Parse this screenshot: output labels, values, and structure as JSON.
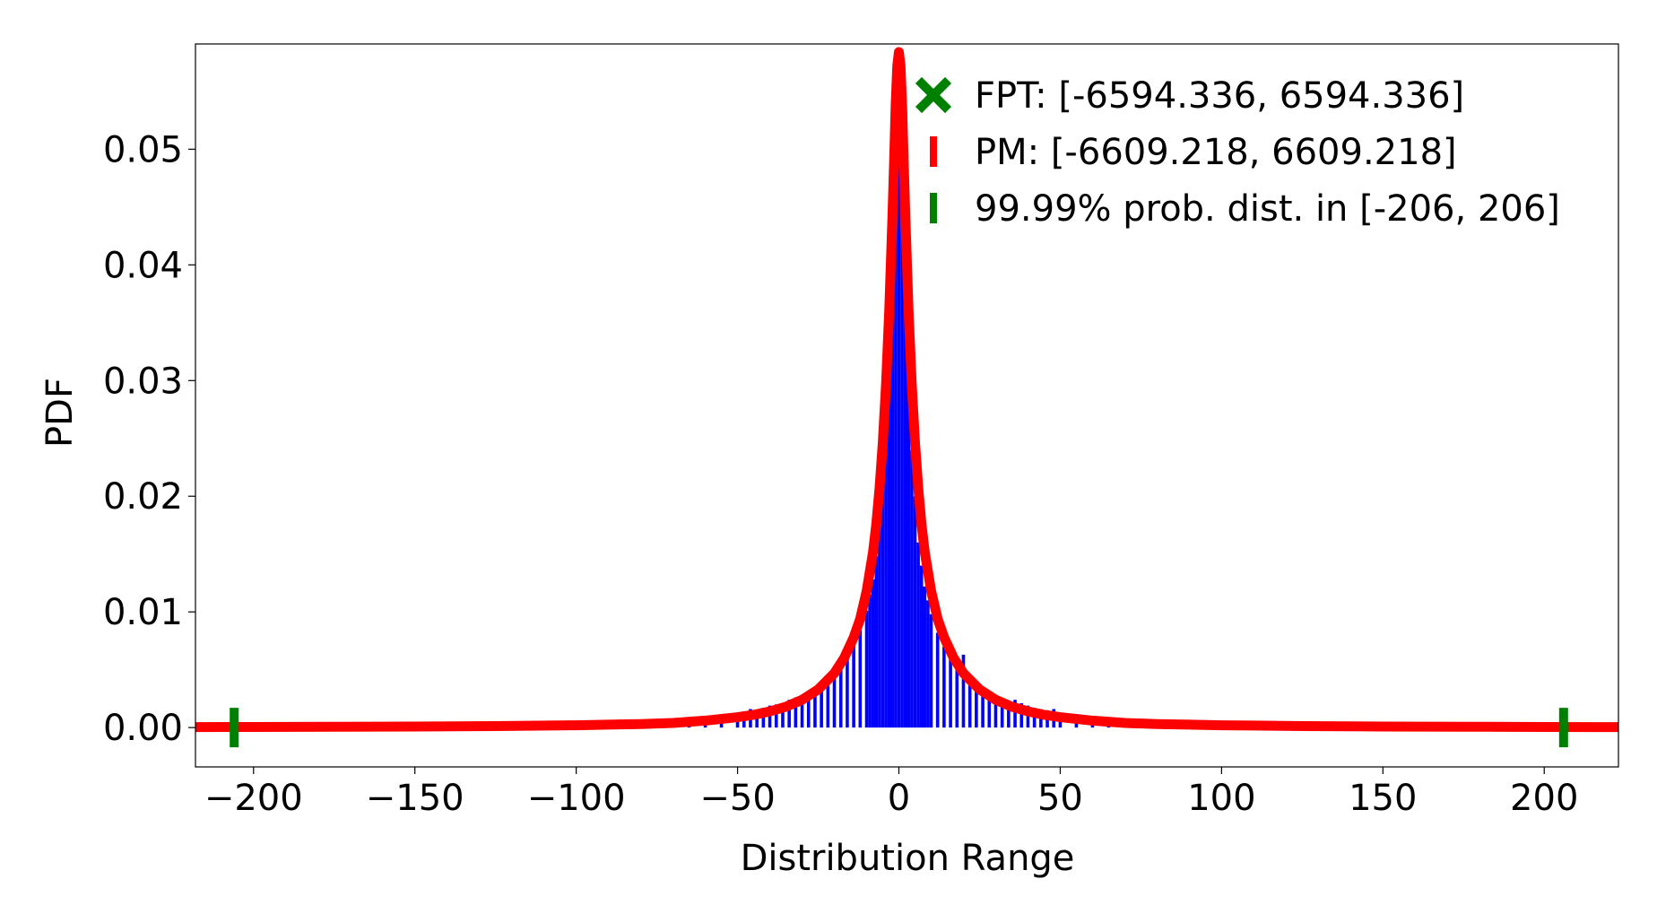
{
  "chart_data": {
    "type": "bar",
    "title": "",
    "xlabel": "Distribution Range",
    "ylabel": "PDF",
    "xlim": [
      -218,
      223
    ],
    "ylim": [
      -0.0034,
      0.0591
    ],
    "grid": false,
    "legend_placement": "top-right",
    "x_ticks": [
      {
        "value": -200,
        "label": "−200"
      },
      {
        "value": -150,
        "label": "−150"
      },
      {
        "value": -100,
        "label": "−100"
      },
      {
        "value": -50,
        "label": "−50"
      },
      {
        "value": 0,
        "label": "0"
      },
      {
        "value": 50,
        "label": "50"
      },
      {
        "value": 100,
        "label": "100"
      },
      {
        "value": 150,
        "label": "150"
      },
      {
        "value": 200,
        "label": "200"
      }
    ],
    "y_ticks": [
      {
        "value": 0.0,
        "label": "0.00"
      },
      {
        "value": 0.01,
        "label": "0.01"
      },
      {
        "value": 0.02,
        "label": "0.02"
      },
      {
        "value": 0.03,
        "label": "0.03"
      },
      {
        "value": 0.04,
        "label": "0.04"
      },
      {
        "value": 0.05,
        "label": "0.05"
      }
    ],
    "histogram": {
      "color": "#0000ff",
      "bin_width": 1,
      "bins": [
        {
          "x": -85,
          "y": 0.0003
        },
        {
          "x": -80,
          "y": 0.0003
        },
        {
          "x": -75,
          "y": 0.0004
        },
        {
          "x": -70,
          "y": 0.0005
        },
        {
          "x": -65,
          "y": 0.0006
        },
        {
          "x": -60,
          "y": 0.0008
        },
        {
          "x": -55,
          "y": 0.001
        },
        {
          "x": -50,
          "y": 0.0012
        },
        {
          "x": -48,
          "y": 0.0014
        },
        {
          "x": -46,
          "y": 0.0016
        },
        {
          "x": -44,
          "y": 0.0015
        },
        {
          "x": -42,
          "y": 0.0017
        },
        {
          "x": -40,
          "y": 0.0019
        },
        {
          "x": -38,
          "y": 0.002
        },
        {
          "x": -36,
          "y": 0.0021
        },
        {
          "x": -34,
          "y": 0.0024
        },
        {
          "x": -32,
          "y": 0.0026
        },
        {
          "x": -30,
          "y": 0.0028
        },
        {
          "x": -28,
          "y": 0.0031
        },
        {
          "x": -26,
          "y": 0.0033
        },
        {
          "x": -24,
          "y": 0.0037
        },
        {
          "x": -22,
          "y": 0.0042
        },
        {
          "x": -20,
          "y": 0.0048
        },
        {
          "x": -18,
          "y": 0.0054
        },
        {
          "x": -16,
          "y": 0.0062
        },
        {
          "x": -14,
          "y": 0.0072
        },
        {
          "x": -12,
          "y": 0.0084
        },
        {
          "x": -10,
          "y": 0.0101
        },
        {
          "x": -9,
          "y": 0.0115
        },
        {
          "x": -8,
          "y": 0.0128
        },
        {
          "x": -7,
          "y": 0.0148
        },
        {
          "x": -6,
          "y": 0.0175
        },
        {
          "x": -5,
          "y": 0.0205
        },
        {
          "x": -4,
          "y": 0.0272
        },
        {
          "x": -3,
          "y": 0.0305
        },
        {
          "x": -2,
          "y": 0.039
        },
        {
          "x": -1,
          "y": 0.048
        },
        {
          "x": 0,
          "y": 0.0545
        },
        {
          "x": 1,
          "y": 0.049
        },
        {
          "x": 2,
          "y": 0.0385
        },
        {
          "x": 3,
          "y": 0.03
        },
        {
          "x": 4,
          "y": 0.024
        },
        {
          "x": 5,
          "y": 0.02
        },
        {
          "x": 6,
          "y": 0.016
        },
        {
          "x": 7,
          "y": 0.014
        },
        {
          "x": 8,
          "y": 0.0122
        },
        {
          "x": 9,
          "y": 0.011
        },
        {
          "x": 10,
          "y": 0.0098
        },
        {
          "x": 12,
          "y": 0.0082
        },
        {
          "x": 14,
          "y": 0.007
        },
        {
          "x": 16,
          "y": 0.0062
        },
        {
          "x": 18,
          "y": 0.0055
        },
        {
          "x": 20,
          "y": 0.0063
        },
        {
          "x": 22,
          "y": 0.0044
        },
        {
          "x": 24,
          "y": 0.0038
        },
        {
          "x": 26,
          "y": 0.0034
        },
        {
          "x": 28,
          "y": 0.0031
        },
        {
          "x": 30,
          "y": 0.0028
        },
        {
          "x": 32,
          "y": 0.0025
        },
        {
          "x": 34,
          "y": 0.0023
        },
        {
          "x": 36,
          "y": 0.0024
        },
        {
          "x": 38,
          "y": 0.0021
        },
        {
          "x": 40,
          "y": 0.0019
        },
        {
          "x": 42,
          "y": 0.0017
        },
        {
          "x": 44,
          "y": 0.0016
        },
        {
          "x": 46,
          "y": 0.0015
        },
        {
          "x": 48,
          "y": 0.0016
        },
        {
          "x": 50,
          "y": 0.0012
        },
        {
          "x": 55,
          "y": 0.001
        },
        {
          "x": 60,
          "y": 0.0008
        },
        {
          "x": 65,
          "y": 0.0006
        },
        {
          "x": 70,
          "y": 0.0005
        },
        {
          "x": 75,
          "y": 0.0004
        },
        {
          "x": 80,
          "y": 0.0003
        },
        {
          "x": 85,
          "y": 0.0003
        }
      ]
    },
    "curve": {
      "color": "#ff0000",
      "x": [
        -223,
        -200,
        -175,
        -150,
        -125,
        -100,
        -90,
        -80,
        -70,
        -60,
        -50,
        -45,
        -40,
        -35,
        -30,
        -25,
        -20,
        -17,
        -14,
        -12,
        -10,
        -8,
        -7,
        -6,
        -5,
        -4,
        -3,
        -2,
        -1.5,
        -1,
        -0.5,
        0,
        0.5,
        1,
        1.5,
        2,
        3,
        4,
        5,
        6,
        7,
        8,
        10,
        12,
        14,
        17,
        20,
        25,
        30,
        35,
        40,
        45,
        50,
        60,
        70,
        80,
        90,
        100,
        125,
        150,
        175,
        200,
        223
      ],
      "y": [
        4e-05,
        5e-05,
        7e-05,
        9e-05,
        0.00013,
        0.0002,
        0.00025,
        0.0003,
        0.0004,
        0.0006,
        0.0009,
        0.0011,
        0.0014,
        0.0018,
        0.0024,
        0.0033,
        0.0047,
        0.006,
        0.0078,
        0.0094,
        0.0118,
        0.0152,
        0.0176,
        0.0207,
        0.0246,
        0.0296,
        0.036,
        0.0442,
        0.0488,
        0.0538,
        0.0572,
        0.0584,
        0.0572,
        0.0538,
        0.0488,
        0.0442,
        0.036,
        0.0296,
        0.0246,
        0.0207,
        0.0176,
        0.0152,
        0.0118,
        0.0094,
        0.0078,
        0.006,
        0.0047,
        0.0033,
        0.0024,
        0.0018,
        0.0014,
        0.0011,
        0.0009,
        0.0006,
        0.0004,
        0.0003,
        0.00025,
        0.0002,
        0.00013,
        9e-05,
        7e-05,
        5e-05,
        4e-05
      ]
    },
    "markers": [
      {
        "x": -206,
        "y": 0.0,
        "color": "#008000"
      },
      {
        "x": 206,
        "y": 0.0,
        "color": "#008000"
      }
    ],
    "legend": [
      {
        "symbol": "x",
        "color": "#008000",
        "label": "FPT: [-6594.336, 6594.336]"
      },
      {
        "symbol": "bar",
        "color": "#ff0000",
        "label": "PM: [-6609.218, 6609.218]"
      },
      {
        "symbol": "bar",
        "color": "#008000",
        "label": "99.99% prob. dist. in [-206, 206]"
      }
    ]
  }
}
